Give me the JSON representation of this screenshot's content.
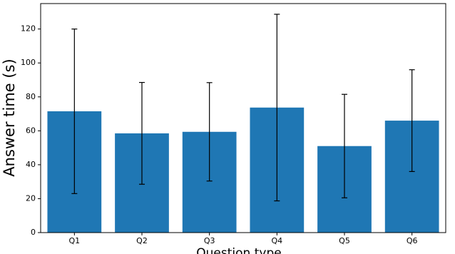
{
  "chart_data": {
    "type": "bar",
    "x_label": "Question type",
    "y_label": "Answer time (s)",
    "categories": [
      "Q1",
      "Q2",
      "Q3",
      "Q4",
      "Q5",
      "Q6"
    ],
    "values": [
      71.5,
      58.5,
      59.4,
      73.7,
      51,
      66
    ],
    "errors": [
      48.5,
      30,
      29,
      55,
      30.5,
      30
    ],
    "color": "#1f77b4",
    "ylim": [
      0,
      135
    ],
    "yticks": [
      0,
      20,
      40,
      60,
      80,
      100,
      120
    ]
  }
}
